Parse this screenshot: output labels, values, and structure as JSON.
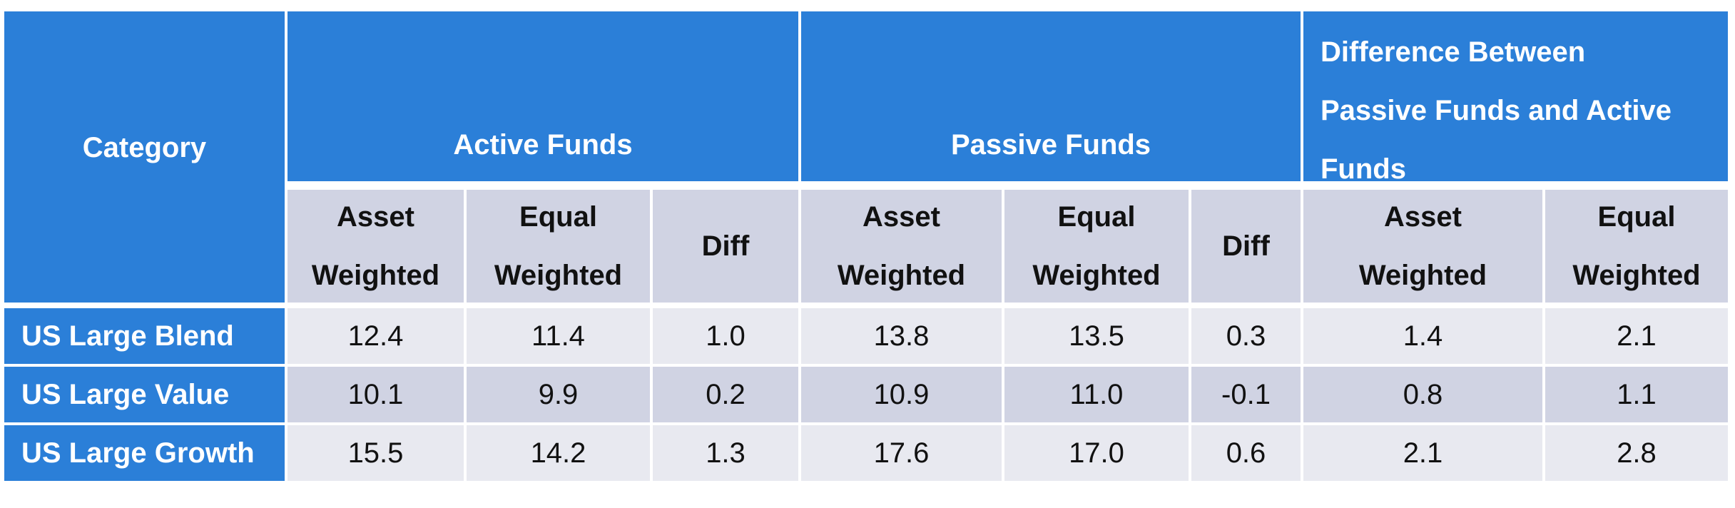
{
  "chart_data": {
    "type": "table",
    "corner_header": "Category",
    "groups": [
      {
        "label": "Active Funds",
        "columns": [
          "Asset Weighted",
          "Equal Weighted",
          "Diff"
        ]
      },
      {
        "label": "Passive Funds",
        "columns": [
          "Asset Weighted",
          "Equal Weighted",
          "Diff"
        ]
      },
      {
        "label": "Difference Between Passive Funds and Active Funds",
        "columns": [
          "Asset Weighted",
          "Equal Weighted"
        ]
      }
    ],
    "rows": [
      {
        "category": "US Large Blend",
        "values": [
          "12.4",
          "11.4",
          "1.0",
          "13.8",
          "13.5",
          "0.3",
          "1.4",
          "2.1"
        ]
      },
      {
        "category": "US Large Value",
        "values": [
          "10.1",
          "9.9",
          "0.2",
          "10.9",
          "11.0",
          "-0.1",
          "0.8",
          "1.1"
        ]
      },
      {
        "category": "US Large Growth",
        "values": [
          "15.5",
          "14.2",
          "1.3",
          "17.6",
          "17.0",
          "0.6",
          "2.1",
          "2.8"
        ]
      }
    ]
  },
  "colors": {
    "header_blue": "#2b7fd8",
    "subheader_gray": "#d0d3e3",
    "row_light": "#e8e9f0",
    "row_dark": "#d0d3e3"
  }
}
